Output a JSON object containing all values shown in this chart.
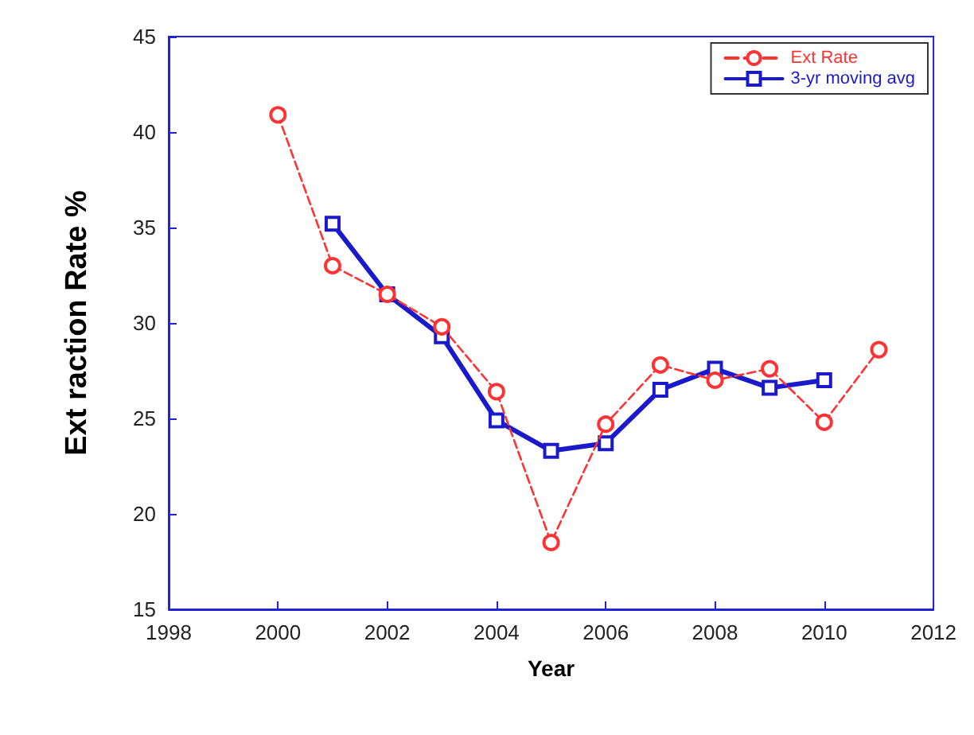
{
  "chart_data": {
    "type": "line",
    "xlabel": "Year",
    "ylabel": "Ext raction Rate %",
    "xlim": [
      1998,
      2012
    ],
    "xticks": [
      1998,
      2000,
      2002,
      2004,
      2006,
      2008,
      2010,
      2012
    ],
    "ylim": [
      15,
      45
    ],
    "yticks": [
      15,
      20,
      25,
      30,
      35,
      40,
      45
    ],
    "grid": false,
    "legend": "top right",
    "series": [
      {
        "name": "Ext Rate",
        "color": "#ff3333",
        "marker": "circle",
        "line_style": "dashed",
        "x": [
          2000,
          2001,
          2002,
          2003,
          2004,
          2005,
          2006,
          2007,
          2008,
          2009,
          2010,
          2011
        ],
        "values": [
          40.9,
          33.0,
          31.5,
          29.8,
          26.4,
          18.5,
          24.7,
          27.8,
          27.0,
          27.6,
          24.8,
          28.6
        ]
      },
      {
        "name": "3-yr moving avg",
        "color": "#1a1acc",
        "marker": "square",
        "line_style": "solid",
        "x": [
          2001,
          2002,
          2003,
          2004,
          2005,
          2006,
          2007,
          2008,
          2009,
          2010
        ],
        "values": [
          35.2,
          31.5,
          29.3,
          24.9,
          23.3,
          23.7,
          26.5,
          27.6,
          26.6,
          27.0
        ]
      }
    ]
  }
}
